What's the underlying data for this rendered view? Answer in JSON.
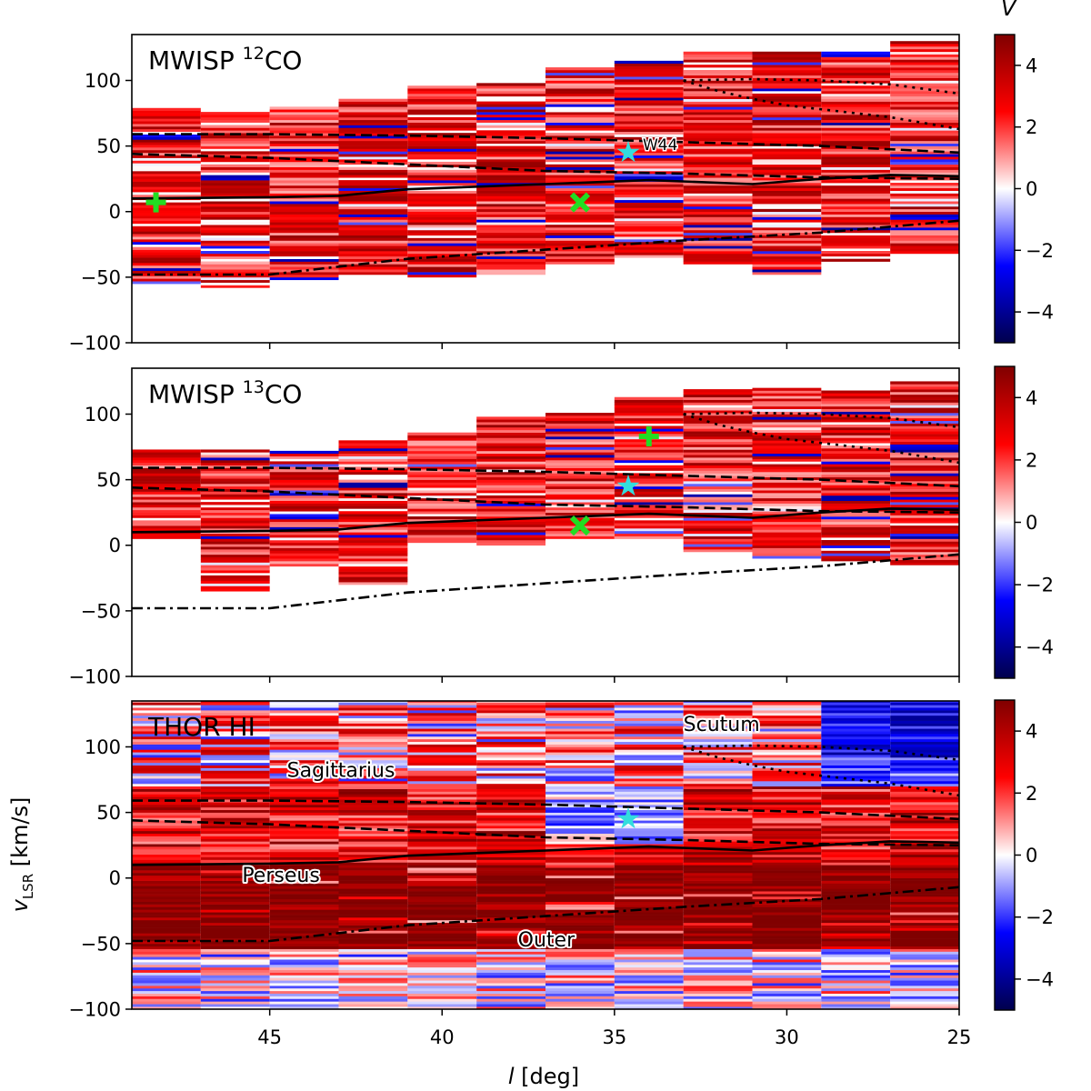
{
  "chart_data": {
    "type": "heatmap",
    "panels": [
      {
        "id": "co12",
        "title_main": "MWISP ",
        "title_sup": "12",
        "title_end": "CO",
        "coverage": [
          {
            "lmax": 49,
            "lmin": 47,
            "vmin": -55,
            "vmax": 78
          },
          {
            "lmax": 47,
            "lmin": 45,
            "vmin": -58,
            "vmax": 76
          },
          {
            "lmax": 45,
            "lmin": 43,
            "vmin": -52,
            "vmax": 80
          },
          {
            "lmax": 43,
            "lmin": 41,
            "vmin": -48,
            "vmax": 86
          },
          {
            "lmax": 41,
            "lmin": 39,
            "vmin": -50,
            "vmax": 95
          },
          {
            "lmax": 39,
            "lmin": 37,
            "vmin": -48,
            "vmax": 98
          },
          {
            "lmax": 37,
            "lmin": 35,
            "vmin": -40,
            "vmax": 110
          },
          {
            "lmax": 35,
            "lmin": 33,
            "vmin": -35,
            "vmax": 115
          },
          {
            "lmax": 33,
            "lmin": 31,
            "vmin": -40,
            "vmax": 122
          },
          {
            "lmax": 31,
            "lmin": 29,
            "vmin": -48,
            "vmax": 122
          },
          {
            "lmax": 29,
            "lmin": 27,
            "vmin": -38,
            "vmax": 122
          },
          {
            "lmax": 27,
            "lmin": 25,
            "vmin": -32,
            "vmax": 130
          }
        ],
        "markers": [
          {
            "type": "plus",
            "l": 48.3,
            "v": 7,
            "color": "#22dd22"
          },
          {
            "type": "x",
            "l": 36.0,
            "v": 7,
            "color": "#22dd22"
          },
          {
            "type": "star",
            "l": 34.6,
            "v": 45,
            "color": "#33dddd",
            "label": "W44"
          }
        ]
      },
      {
        "id": "co13",
        "title_main": "MWISP ",
        "title_sup": "13",
        "title_end": "CO",
        "coverage": [
          {
            "lmax": 49,
            "lmin": 47,
            "vmin": 5,
            "vmax": 75
          },
          {
            "lmax": 47,
            "lmin": 45,
            "vmin": -35,
            "vmax": 72
          },
          {
            "lmax": 45,
            "lmin": 43,
            "vmin": -18,
            "vmax": 72
          },
          {
            "lmax": 43,
            "lmin": 41,
            "vmin": -30,
            "vmax": 80
          },
          {
            "lmax": 41,
            "lmin": 39,
            "vmin": 2,
            "vmax": 85
          },
          {
            "lmax": 39,
            "lmin": 37,
            "vmin": 0,
            "vmax": 97
          },
          {
            "lmax": 37,
            "lmin": 35,
            "vmin": 5,
            "vmax": 100
          },
          {
            "lmax": 35,
            "lmin": 33,
            "vmin": 5,
            "vmax": 112
          },
          {
            "lmax": 33,
            "lmin": 31,
            "vmin": -5,
            "vmax": 118
          },
          {
            "lmax": 31,
            "lmin": 29,
            "vmin": -10,
            "vmax": 120
          },
          {
            "lmax": 29,
            "lmin": 27,
            "vmin": -12,
            "vmax": 118
          },
          {
            "lmax": 27,
            "lmin": 25,
            "vmin": -15,
            "vmax": 125
          }
        ],
        "markers": [
          {
            "type": "plus",
            "l": 34.0,
            "v": 83,
            "color": "#22dd22"
          },
          {
            "type": "x",
            "l": 36.0,
            "v": 15,
            "color": "#22dd22"
          },
          {
            "type": "star",
            "l": 34.6,
            "v": 45,
            "color": "#33dddd"
          }
        ]
      },
      {
        "id": "hi",
        "title_main": "THOR HI",
        "title_sup": "",
        "title_end": "",
        "coverage": [
          {
            "lmax": 49,
            "lmin": 47,
            "vmin": -100,
            "vmax": 135
          },
          {
            "lmax": 47,
            "lmin": 45,
            "vmin": -100,
            "vmax": 135
          },
          {
            "lmax": 45,
            "lmin": 43,
            "vmin": -100,
            "vmax": 135
          },
          {
            "lmax": 43,
            "lmin": 41,
            "vmin": -100,
            "vmax": 135
          },
          {
            "lmax": 41,
            "lmin": 39,
            "vmin": -100,
            "vmax": 135
          },
          {
            "lmax": 39,
            "lmin": 37,
            "vmin": -100,
            "vmax": 135
          },
          {
            "lmax": 37,
            "lmin": 35,
            "vmin": -100,
            "vmax": 135
          },
          {
            "lmax": 35,
            "lmin": 33,
            "vmin": -100,
            "vmax": 135
          },
          {
            "lmax": 33,
            "lmin": 31,
            "vmin": -100,
            "vmax": 135
          },
          {
            "lmax": 31,
            "lmin": 29,
            "vmin": -100,
            "vmax": 135
          },
          {
            "lmax": 29,
            "lmin": 27,
            "vmin": -100,
            "vmax": 135
          },
          {
            "lmax": 27,
            "lmin": 25,
            "vmin": -100,
            "vmax": 135
          }
        ],
        "markers": [
          {
            "type": "star",
            "l": 34.6,
            "v": 45,
            "color": "#33dddd"
          }
        ],
        "arm_labels": [
          {
            "text": "Scutum",
            "l": 33.0,
            "v": 112
          },
          {
            "text": "Sagittarius",
            "l": 44.5,
            "v": 77
          },
          {
            "text": "Perseus",
            "l": 45.8,
            "v": -3
          },
          {
            "text": "Outer",
            "l": 37.8,
            "v": -52
          }
        ]
      }
    ],
    "spiral_arms": [
      {
        "name": "Perseus",
        "style": "solid",
        "points": [
          [
            49,
            10
          ],
          [
            45,
            11
          ],
          [
            43,
            12
          ],
          [
            41,
            17
          ],
          [
            37,
            21
          ],
          [
            34,
            24
          ],
          [
            31,
            21
          ],
          [
            29,
            25
          ],
          [
            27,
            28
          ],
          [
            25,
            27
          ]
        ]
      },
      {
        "name": "Sagittarius far",
        "style": "dashed",
        "points": [
          [
            49,
            59
          ],
          [
            45,
            59
          ],
          [
            41,
            58
          ],
          [
            37,
            56
          ],
          [
            33,
            53
          ],
          [
            29,
            50
          ],
          [
            25,
            45
          ]
        ]
      },
      {
        "name": "Sagittarius near",
        "style": "dashed",
        "points": [
          [
            49,
            44
          ],
          [
            45,
            41
          ],
          [
            41,
            36
          ],
          [
            37,
            31
          ],
          [
            33,
            29
          ],
          [
            29,
            26
          ],
          [
            25,
            25
          ]
        ]
      },
      {
        "name": "Outer",
        "style": "dashdot",
        "points": [
          [
            49,
            -48
          ],
          [
            45,
            -48
          ],
          [
            43,
            -42
          ],
          [
            41,
            -36
          ],
          [
            37,
            -29
          ],
          [
            33,
            -22
          ],
          [
            29,
            -16
          ],
          [
            25,
            -7
          ]
        ]
      },
      {
        "name": "Scutum far",
        "style": "dotted",
        "points": [
          [
            33,
            100
          ],
          [
            32,
            92
          ],
          [
            31,
            86
          ],
          [
            30,
            81
          ],
          [
            29,
            78
          ],
          [
            27,
            72
          ],
          [
            25,
            63
          ]
        ]
      },
      {
        "name": "Scutum near",
        "style": "dotted",
        "points": [
          [
            33,
            100
          ],
          [
            31,
            101
          ],
          [
            29,
            100
          ],
          [
            27,
            97
          ],
          [
            25,
            90
          ]
        ]
      }
    ],
    "x_axis": {
      "label": "l [deg]",
      "range": [
        49,
        25
      ],
      "ticks": [
        45,
        40,
        35,
        30,
        25
      ]
    },
    "y_axis": {
      "label": "v_LSR [km/s]",
      "range": [
        -100,
        135
      ],
      "ticks": [
        100,
        50,
        0,
        -50,
        -100
      ]
    },
    "colorbar": {
      "label": "V",
      "range": [
        -5,
        5
      ],
      "ticks": [
        4,
        2,
        0,
        -2,
        -4
      ],
      "colormap": "seismic"
    }
  },
  "labels": {
    "x_label_italic": "l",
    "x_label_rest": " [deg]",
    "y_label_v": "v",
    "y_label_sub": "LSR",
    "y_label_rest": " [km/s]",
    "colorbar_title": "V",
    "minus": "−"
  }
}
